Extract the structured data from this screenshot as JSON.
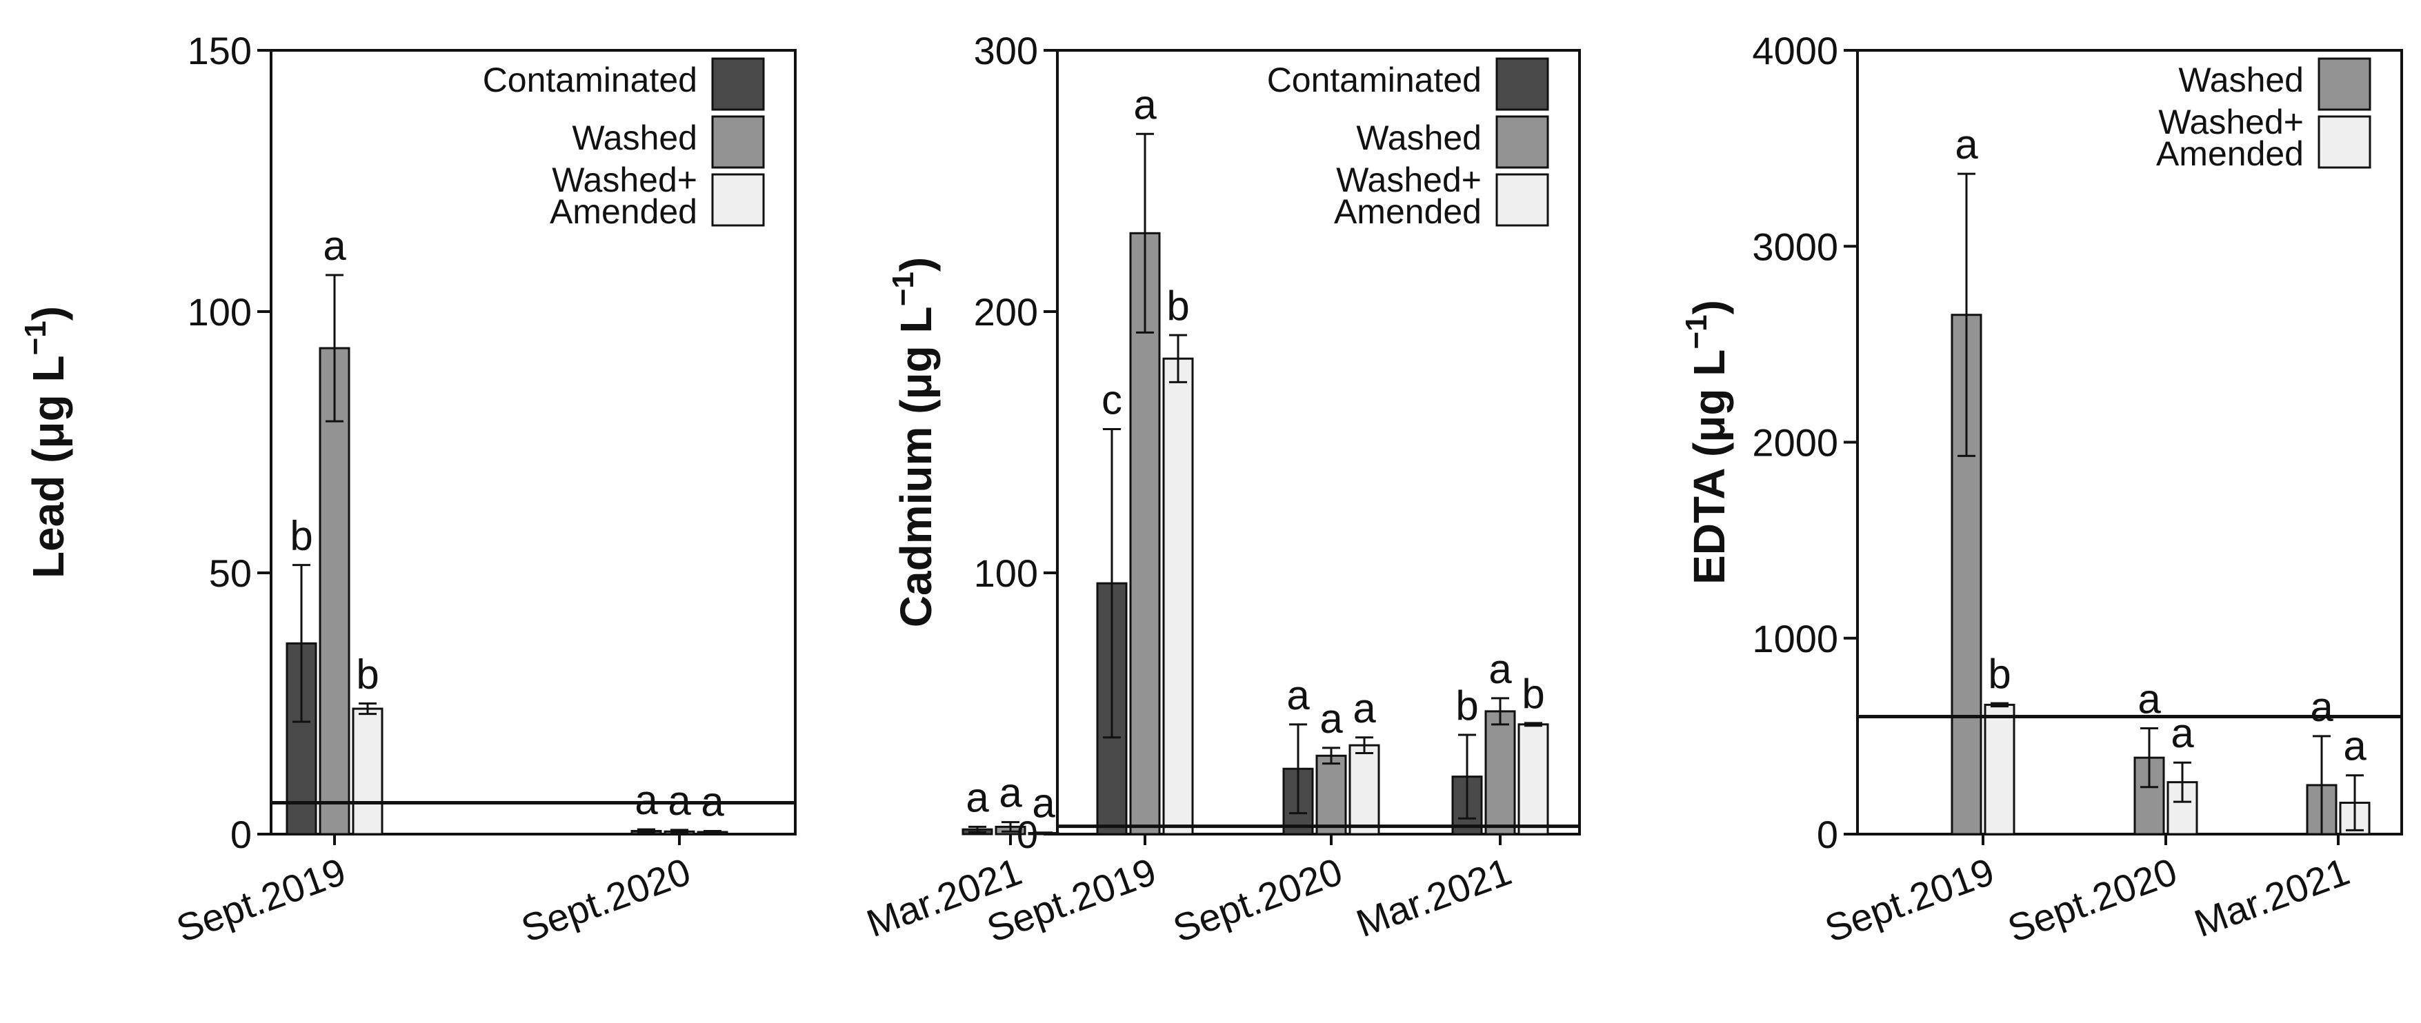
{
  "colors": {
    "Contaminated": "#4a4a4a",
    "Washed": "#939393",
    "Washed+Amended": "#efefef",
    "axis": "#111111"
  },
  "chart_data": [
    {
      "type": "bar",
      "ylabel": "Lead (μg L",
      "ylabel_sup": "−1",
      "ylabel_close": ")",
      "ylim": [
        0,
        150
      ],
      "yticks": [
        0,
        50,
        100,
        150
      ],
      "categories": [
        "Sept.2019",
        "Sept.2020",
        "Mar.2021"
      ],
      "reference_line": 6,
      "legend": [
        {
          "series": "Contaminated",
          "lines": [
            "Contaminated"
          ]
        },
        {
          "series": "Washed",
          "lines": [
            "Washed"
          ]
        },
        {
          "series": "Washed+Amended",
          "lines": [
            "Washed+",
            "Amended"
          ]
        }
      ],
      "series": [
        {
          "name": "Contaminated",
          "values": [
            36.5,
            0.6,
            0.9
          ],
          "errors": [
            15,
            0.3,
            0.5
          ],
          "labels": [
            "b",
            "a",
            "a"
          ]
        },
        {
          "name": "Washed",
          "values": [
            93,
            0.5,
            1.4
          ],
          "errors": [
            14,
            0.3,
            0.9
          ],
          "labels": [
            "a",
            "a",
            "a"
          ]
        },
        {
          "name": "Washed+Amended",
          "values": [
            24,
            0.4,
            0.2
          ],
          "errors": [
            1,
            0.2,
            0.1
          ],
          "labels": [
            "b",
            "a",
            "a"
          ]
        }
      ]
    },
    {
      "type": "bar",
      "ylabel": "Cadmium (μg L",
      "ylabel_sup": "−1",
      "ylabel_close": ")",
      "ylim": [
        0,
        300
      ],
      "yticks": [
        0,
        100,
        200,
        300
      ],
      "categories": [
        "Sept.2019",
        "Sept.2020",
        "Mar.2021"
      ],
      "reference_line": 3,
      "legend": [
        {
          "series": "Contaminated",
          "lines": [
            "Contaminated"
          ]
        },
        {
          "series": "Washed",
          "lines": [
            "Washed"
          ]
        },
        {
          "series": "Washed+Amended",
          "lines": [
            "Washed+",
            "Amended"
          ]
        }
      ],
      "series": [
        {
          "name": "Contaminated",
          "values": [
            96,
            25,
            22
          ],
          "errors": [
            59,
            17,
            16
          ],
          "labels": [
            "c",
            "a",
            "b"
          ]
        },
        {
          "name": "Washed",
          "values": [
            230,
            30,
            47
          ],
          "errors": [
            38,
            3,
            5
          ],
          "labels": [
            "a",
            "a",
            "a"
          ]
        },
        {
          "name": "Washed+Amended",
          "values": [
            182,
            34,
            42
          ],
          "errors": [
            9,
            3,
            0.5
          ],
          "labels": [
            "b",
            "a",
            "b"
          ]
        }
      ]
    },
    {
      "type": "bar",
      "ylabel": "EDTA (μg L",
      "ylabel_sup": "−1",
      "ylabel_close": ")",
      "ylim": [
        0,
        4000
      ],
      "yticks": [
        0,
        1000,
        2000,
        3000,
        4000
      ],
      "categories": [
        "Sept.2019",
        "Sept.2020",
        "Mar.2021"
      ],
      "reference_line": 600,
      "legend": [
        {
          "series": "Washed",
          "lines": [
            "Washed"
          ]
        },
        {
          "series": "Washed+Amended",
          "lines": [
            "Washed+",
            "Amended"
          ]
        }
      ],
      "series": [
        {
          "name": "Washed",
          "values": [
            2650,
            390,
            250
          ],
          "errors": [
            720,
            150,
            250
          ],
          "labels": [
            "a",
            "a",
            "a"
          ]
        },
        {
          "name": "Washed+Amended",
          "values": [
            660,
            265,
            160
          ],
          "errors": [
            8,
            100,
            140
          ],
          "labels": [
            "b",
            "a",
            "a"
          ]
        }
      ]
    }
  ]
}
